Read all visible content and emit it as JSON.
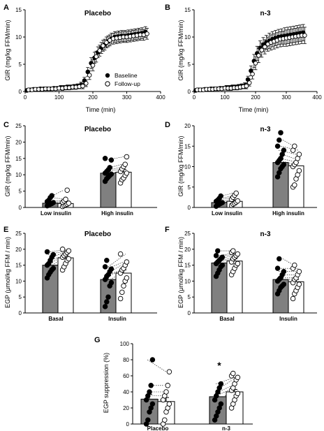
{
  "chart_data": [
    {
      "panel": "A",
      "type": "line",
      "title": "Placebo",
      "xlabel": "Time (min)",
      "ylabel": "GIR (mg/kg FFM/min)",
      "xlim": [
        0,
        400
      ],
      "ylim": [
        0,
        15
      ],
      "xticks": [
        "0",
        "100",
        "200",
        "300",
        "400"
      ],
      "yticks": [
        "0",
        "5",
        "10",
        "15"
      ],
      "legend": "bottom-right",
      "series": [
        {
          "name": "Baseline",
          "marker": "filled-circle",
          "x": [
            5,
            15,
            25,
            35,
            45,
            55,
            65,
            75,
            85,
            95,
            105,
            115,
            125,
            135,
            145,
            155,
            165,
            175,
            185,
            195,
            205,
            215,
            225,
            235,
            245,
            255,
            265,
            275,
            285,
            295,
            305,
            315,
            325,
            335,
            345,
            355
          ],
          "y": [
            0.2,
            0.3,
            0.4,
            0.4,
            0.5,
            0.5,
            0.5,
            0.5,
            0.6,
            0.6,
            0.7,
            0.7,
            0.8,
            0.8,
            0.9,
            1.0,
            1.2,
            2.0,
            3.6,
            5.2,
            6.2,
            7.2,
            8.0,
            8.6,
            9.2,
            9.7,
            10.0,
            10.1,
            10.2,
            10.2,
            10.3,
            10.4,
            10.5,
            10.6,
            10.7,
            10.9
          ],
          "err": [
            0.3,
            0.3,
            0.3,
            0.3,
            0.3,
            0.3,
            0.3,
            0.3,
            0.3,
            0.3,
            0.4,
            0.4,
            0.4,
            0.4,
            0.4,
            0.4,
            0.5,
            0.6,
            0.8,
            1.0,
            1.0,
            1.0,
            1.0,
            1.0,
            1.0,
            1.0,
            1.0,
            1.0,
            1.0,
            1.0,
            1.0,
            1.0,
            1.0,
            1.0,
            1.0,
            1.0
          ]
        },
        {
          "name": "Follow-up",
          "marker": "open-circle",
          "x": [
            10,
            20,
            30,
            40,
            50,
            60,
            70,
            80,
            90,
            100,
            110,
            120,
            130,
            140,
            150,
            160,
            170,
            180,
            190,
            200,
            210,
            220,
            230,
            240,
            250,
            260,
            270,
            280,
            290,
            300,
            310,
            320,
            330,
            340,
            350,
            360
          ],
          "y": [
            0.3,
            0.3,
            0.4,
            0.4,
            0.4,
            0.5,
            0.5,
            0.5,
            0.5,
            0.6,
            0.6,
            0.7,
            0.7,
            0.8,
            0.8,
            0.9,
            1.0,
            1.5,
            3.0,
            4.8,
            6.4,
            7.5,
            8.4,
            9.0,
            9.4,
            9.7,
            9.8,
            9.9,
            10.0,
            10.0,
            10.1,
            10.2,
            10.3,
            10.4,
            10.4,
            10.6
          ],
          "err": [
            0.3,
            0.3,
            0.3,
            0.3,
            0.3,
            0.3,
            0.3,
            0.3,
            0.3,
            0.3,
            0.4,
            0.4,
            0.4,
            0.4,
            0.4,
            0.4,
            0.5,
            0.6,
            0.8,
            1.0,
            1.0,
            1.0,
            1.0,
            1.0,
            1.0,
            1.0,
            1.0,
            1.0,
            1.0,
            1.0,
            1.0,
            1.0,
            1.0,
            1.0,
            1.0,
            1.0
          ]
        }
      ]
    },
    {
      "panel": "B",
      "type": "line",
      "title": "n-3",
      "xlabel": "Time (min)",
      "ylabel": "GIR (mg/kg FFM/min)",
      "xlim": [
        0,
        400
      ],
      "ylim": [
        0,
        15
      ],
      "xticks": [
        "0",
        "100",
        "200",
        "300",
        "400"
      ],
      "yticks": [
        "0",
        "5",
        "10",
        "15"
      ],
      "series": [
        {
          "name": "Baseline",
          "marker": "filled-circle",
          "x": [
            5,
            15,
            25,
            35,
            45,
            55,
            65,
            75,
            85,
            95,
            105,
            115,
            125,
            135,
            145,
            155,
            165,
            175,
            185,
            195,
            205,
            215,
            225,
            235,
            245,
            255,
            265,
            275,
            285,
            295,
            305,
            315,
            325,
            335,
            345,
            355
          ],
          "y": [
            0.2,
            0.3,
            0.3,
            0.4,
            0.4,
            0.5,
            0.5,
            0.5,
            0.6,
            0.6,
            0.7,
            0.7,
            0.8,
            0.8,
            0.9,
            1.0,
            1.1,
            2.2,
            3.8,
            5.6,
            7.0,
            8.0,
            8.6,
            9.0,
            9.3,
            9.6,
            9.8,
            10.0,
            10.1,
            10.2,
            10.3,
            10.4,
            10.5,
            10.6,
            10.7,
            10.8
          ],
          "err": [
            0.3,
            0.3,
            0.3,
            0.3,
            0.3,
            0.3,
            0.3,
            0.3,
            0.3,
            0.3,
            0.4,
            0.4,
            0.4,
            0.4,
            0.4,
            0.4,
            0.5,
            0.6,
            0.9,
            1.2,
            1.3,
            1.3,
            1.3,
            1.3,
            1.4,
            1.4,
            1.4,
            1.4,
            1.4,
            1.5,
            1.5,
            1.5,
            1.5,
            1.5,
            1.5,
            1.5
          ]
        },
        {
          "name": "Follow-up",
          "marker": "open-circle",
          "x": [
            10,
            20,
            30,
            40,
            50,
            60,
            70,
            80,
            90,
            100,
            110,
            120,
            130,
            140,
            150,
            160,
            170,
            180,
            190,
            200,
            210,
            220,
            230,
            240,
            250,
            260,
            270,
            280,
            290,
            300,
            310,
            320,
            330,
            340,
            350,
            360
          ],
          "y": [
            0.3,
            0.3,
            0.3,
            0.4,
            0.4,
            0.4,
            0.5,
            0.5,
            0.5,
            0.6,
            0.6,
            0.6,
            0.7,
            0.7,
            0.8,
            0.9,
            1.0,
            1.6,
            3.2,
            5.2,
            6.6,
            7.6,
            8.2,
            8.7,
            9.0,
            9.2,
            9.4,
            9.6,
            9.7,
            9.8,
            9.9,
            10.0,
            10.1,
            10.2,
            10.3,
            10.3
          ],
          "err": [
            0.3,
            0.3,
            0.3,
            0.3,
            0.3,
            0.3,
            0.3,
            0.3,
            0.3,
            0.3,
            0.4,
            0.4,
            0.4,
            0.4,
            0.4,
            0.4,
            0.5,
            0.6,
            0.9,
            1.2,
            1.3,
            1.3,
            1.3,
            1.3,
            1.4,
            1.4,
            1.4,
            1.4,
            1.4,
            1.5,
            1.5,
            1.5,
            1.5,
            1.5,
            1.5,
            1.5
          ]
        }
      ]
    },
    {
      "panel": "C",
      "type": "bar",
      "title": "Placebo",
      "ylabel": "GIR (mg/kg FFM/min)",
      "ylim": [
        0,
        25
      ],
      "yticks": [
        "0",
        "5",
        "10",
        "15",
        "20",
        "25"
      ],
      "categories": [
        "Low insulin",
        "High insulin"
      ],
      "series": [
        {
          "name": "Baseline",
          "fill": "#808080",
          "values": [
            1.3,
            10.5
          ],
          "err": [
            0.5,
            0.9
          ],
          "points": [
            [
              0.5,
              0.8,
              1.0,
              1.2,
              1.5,
              1.8,
              2.2,
              3.0,
              3.6
            ],
            [
              8.0,
              8.8,
              9.3,
              9.8,
              10.2,
              10.5,
              11.0,
              11.5,
              12.2,
              14.5,
              15.0
            ]
          ]
        },
        {
          "name": "Follow-up",
          "fill": "#ffffff",
          "values": [
            1.2,
            10.8
          ],
          "err": [
            0.5,
            0.8
          ],
          "points": [
            [
              0.3,
              0.6,
              0.8,
              1.0,
              1.3,
              1.6,
              2.0,
              2.5,
              5.3
            ],
            [
              7.5,
              8.5,
              9.0,
              9.8,
              10.5,
              11.0,
              11.8,
              12.5,
              13.2,
              15.5
            ]
          ]
        }
      ]
    },
    {
      "panel": "D",
      "type": "bar",
      "title": "n-3",
      "ylabel": "GIR (mg/kg FFM/min)",
      "ylim": [
        0,
        20
      ],
      "yticks": [
        "0",
        "5",
        "10",
        "15",
        "20"
      ],
      "categories": [
        "Low insulin",
        "High insulin"
      ],
      "series": [
        {
          "name": "Baseline",
          "fill": "#808080",
          "values": [
            1.2,
            11.0
          ],
          "err": [
            0.3,
            0.8
          ],
          "points": [
            [
              0.3,
              0.6,
              0.8,
              1.0,
              1.2,
              1.5,
              1.8,
              2.2,
              2.8
            ],
            [
              7.5,
              8.5,
              9.5,
              10.0,
              10.5,
              11.0,
              11.5,
              12.0,
              13.0,
              14.0,
              15.0,
              16.5,
              18.3
            ]
          ]
        },
        {
          "name": "Follow-up",
          "fill": "#ffffff",
          "values": [
            1.5,
            10.2
          ],
          "err": [
            0.3,
            0.8
          ],
          "points": [
            [
              0.5,
              0.8,
              1.0,
              1.3,
              1.6,
              2.0,
              2.5,
              3.0,
              3.5
            ],
            [
              5.0,
              5.5,
              7.0,
              8.0,
              9.0,
              10.0,
              10.5,
              11.0,
              12.0,
              13.0,
              14.0,
              15.0
            ]
          ]
        }
      ]
    },
    {
      "panel": "E",
      "type": "bar",
      "title": "Placebo",
      "ylabel": "EGP (μmol/kg FFM / min)",
      "ylim": [
        0,
        25
      ],
      "yticks": [
        "0",
        "5",
        "10",
        "15",
        "20",
        "25"
      ],
      "categories": [
        "Basal",
        "Insulin"
      ],
      "series": [
        {
          "name": "Baseline",
          "fill": "#808080",
          "values": [
            15.0,
            10.5
          ],
          "err": [
            0.8,
            1.2
          ],
          "points": [
            [
              11.0,
              12.0,
              12.8,
              13.5,
              14.0,
              15.0,
              15.5,
              16.5,
              17.5,
              18.3,
              19.2
            ],
            [
              2.0,
              3.5,
              5.0,
              8.5,
              9.5,
              10.5,
              11.5,
              12.0,
              13.0,
              13.8,
              14.5,
              16.5
            ]
          ]
        },
        {
          "name": "Follow-up",
          "fill": "#ffffff",
          "values": [
            17.3,
            12.5
          ],
          "err": [
            0.6,
            1.0
          ],
          "points": [
            [
              13.5,
              14.5,
              15.5,
              16.5,
              17.0,
              17.5,
              18.0,
              18.5,
              19.0,
              19.5,
              20.0
            ],
            [
              4.5,
              6.5,
              8.5,
              10.0,
              11.0,
              12.5,
              13.5,
              14.0,
              15.0,
              16.0,
              18.5
            ]
          ]
        }
      ]
    },
    {
      "panel": "F",
      "type": "bar",
      "title": "n-3",
      "ylabel": "EGP (μmol/kg FFM / min)",
      "ylim": [
        0,
        25
      ],
      "yticks": [
        "0",
        "5",
        "10",
        "15",
        "20",
        "25"
      ],
      "categories": [
        "Basal",
        "Insulin"
      ],
      "series": [
        {
          "name": "Baseline",
          "fill": "#808080",
          "values": [
            15.7,
            10.5
          ],
          "err": [
            0.7,
            0.8
          ],
          "points": [
            [
              11.5,
              12.5,
              13.5,
              14.5,
              15.0,
              15.5,
              16.0,
              16.5,
              17.0,
              17.5,
              18.0,
              19.5
            ],
            [
              6.0,
              7.0,
              8.0,
              8.5,
              9.0,
              10.0,
              10.5,
              11.0,
              12.0,
              13.0,
              14.0,
              17.0
            ]
          ]
        },
        {
          "name": "Follow-up",
          "fill": "#ffffff",
          "values": [
            16.3,
            9.8
          ],
          "err": [
            0.7,
            0.7
          ],
          "points": [
            [
              12.0,
              13.0,
              14.0,
              15.0,
              15.5,
              16.0,
              17.0,
              17.5,
              18.0,
              18.5,
              19.0,
              19.5
            ],
            [
              4.5,
              6.0,
              7.0,
              8.0,
              9.0,
              9.5,
              10.5,
              11.0,
              12.0,
              13.0,
              14.0,
              15.0
            ]
          ]
        }
      ]
    },
    {
      "panel": "G",
      "type": "bar",
      "ylabel": "EGP suppression (%)",
      "ylim": [
        0,
        100
      ],
      "yticks": [
        "0",
        "20",
        "40",
        "60",
        "80",
        "100"
      ],
      "categories": [
        "Placebo",
        "n-3"
      ],
      "annotations": [
        {
          "category": "n-3",
          "text": "*"
        }
      ],
      "series": [
        {
          "name": "Baseline",
          "fill": "#808080",
          "values": [
            31,
            34
          ],
          "err": [
            6,
            4
          ],
          "points": [
            [
              0,
              5,
              15,
              20,
              25,
              30,
              35,
              40,
              48,
              80
            ],
            [
              5,
              10,
              15,
              20,
              25,
              30,
              35,
              40,
              45,
              50
            ]
          ]
        },
        {
          "name": "Follow-up",
          "fill": "#ffffff",
          "values": [
            28,
            40
          ],
          "err": [
            5,
            3
          ],
          "points": [
            [
              0,
              5,
              15,
              20,
              25,
              30,
              35,
              40,
              48,
              65
            ],
            [
              20,
              25,
              30,
              35,
              38,
              42,
              45,
              50,
              55,
              58,
              60,
              63
            ]
          ]
        }
      ]
    }
  ]
}
